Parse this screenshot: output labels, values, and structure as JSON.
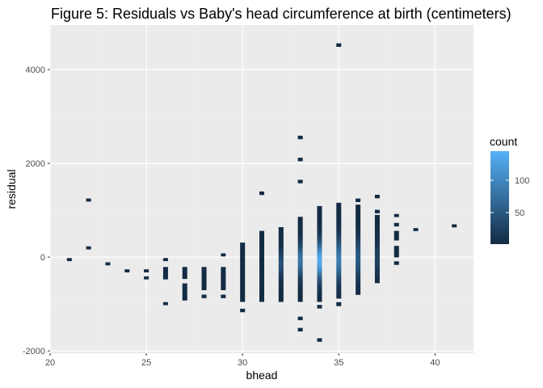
{
  "chart_data": {
    "type": "heatmap",
    "title": "Figure 5: Residuals vs Baby's head circumference at birth (centimeters)",
    "xlabel": "bhead",
    "ylabel": "residual",
    "xlim": [
      20,
      42
    ],
    "ylim": [
      -2050,
      4950
    ],
    "x_ticks": [
      20,
      25,
      30,
      35,
      40
    ],
    "x_tick_labels": [
      "20",
      "25",
      "30",
      "35",
      "40"
    ],
    "y_ticks": [
      -2000,
      0,
      2000,
      4000
    ],
    "y_tick_labels": [
      "-2000",
      "0",
      "2000",
      "4000"
    ],
    "grid": true,
    "legend": {
      "title": "count",
      "placement": "right",
      "ticks": [
        50,
        100
      ],
      "tick_labels": [
        "50",
        "100"
      ],
      "range": [
        1,
        145
      ],
      "color_low": "#132B43",
      "color_high": "#56B1F7"
    },
    "columns": [
      {
        "x": 21,
        "segments": [
          {
            "from": -80,
            "to": -20
          }
        ]
      },
      {
        "x": 22,
        "segments": [
          {
            "from": 170,
            "to": 230
          },
          {
            "from": 1190,
            "to": 1250
          }
        ]
      },
      {
        "x": 23,
        "segments": [
          {
            "from": -170,
            "to": -110
          }
        ]
      },
      {
        "x": 24,
        "segments": [
          {
            "from": -320,
            "to": -260
          }
        ]
      },
      {
        "x": 25,
        "segments": [
          {
            "from": -470,
            "to": -410
          },
          {
            "from": -320,
            "to": -260
          }
        ]
      },
      {
        "x": 26,
        "segments": [
          {
            "from": -1020,
            "to": -960
          },
          {
            "from": -470,
            "to": -210
          },
          {
            "from": -80,
            "to": -20
          }
        ]
      },
      {
        "x": 27,
        "segments": [
          {
            "from": -920,
            "to": -560
          },
          {
            "from": -460,
            "to": -210
          }
        ]
      },
      {
        "x": 28,
        "segments": [
          {
            "from": -870,
            "to": -800
          },
          {
            "from": -700,
            "to": -210
          }
        ]
      },
      {
        "x": 29,
        "segments": [
          {
            "from": -870,
            "to": -800
          },
          {
            "from": -700,
            "to": -210
          },
          {
            "from": 20,
            "to": 80
          }
        ]
      },
      {
        "x": 30,
        "segments": [
          {
            "from": -1170,
            "to": -1100
          },
          {
            "from": -950,
            "to": 310
          }
        ]
      },
      {
        "x": 31,
        "segments": [
          {
            "from": -950,
            "to": 560
          },
          {
            "from": 1330,
            "to": 1400
          }
        ]
      },
      {
        "x": 32,
        "segments": [
          {
            "from": -950,
            "to": 640
          }
        ]
      },
      {
        "x": 33,
        "segments": [
          {
            "from": -1580,
            "to": -1510
          },
          {
            "from": -1340,
            "to": -1270
          },
          {
            "from": -950,
            "to": 860
          },
          {
            "from": 1580,
            "to": 1650
          },
          {
            "from": 2050,
            "to": 2120
          },
          {
            "from": 2520,
            "to": 2590
          }
        ]
      },
      {
        "x": 34,
        "segments": [
          {
            "from": -1800,
            "to": -1730
          },
          {
            "from": -1090,
            "to": -1020
          },
          {
            "from": -950,
            "to": 1090
          }
        ]
      },
      {
        "x": 35,
        "segments": [
          {
            "from": -1040,
            "to": -960
          },
          {
            "from": -880,
            "to": 1160
          },
          {
            "from": 4490,
            "to": 4560
          }
        ]
      },
      {
        "x": 36,
        "segments": [
          {
            "from": -800,
            "to": 1120
          },
          {
            "from": 1180,
            "to": 1250
          }
        ]
      },
      {
        "x": 37,
        "segments": [
          {
            "from": -550,
            "to": 900
          },
          {
            "from": 940,
            "to": 1010
          },
          {
            "from": 1260,
            "to": 1330
          }
        ]
      },
      {
        "x": 38,
        "segments": [
          {
            "from": -160,
            "to": -90
          },
          {
            "from": 0,
            "to": 240
          },
          {
            "from": 360,
            "to": 560
          },
          {
            "from": 660,
            "to": 730
          },
          {
            "from": 860,
            "to": 920
          }
        ]
      },
      {
        "x": 39,
        "segments": [
          {
            "from": 560,
            "to": 620
          }
        ]
      },
      {
        "x": 41,
        "segments": [
          {
            "from": 640,
            "to": 700
          }
        ]
      }
    ],
    "hotspots": [
      {
        "x": 32,
        "center": -130,
        "spread": 190,
        "peak": 0.28
      },
      {
        "x": 33,
        "center": -70,
        "spread": 230,
        "peak": 0.55
      },
      {
        "x": 34,
        "center": -70,
        "spread": 270,
        "peak": 0.95
      },
      {
        "x": 35,
        "center": -50,
        "spread": 300,
        "peak": 0.6
      },
      {
        "x": 36,
        "center": -20,
        "spread": 300,
        "peak": 0.35
      },
      {
        "x": 37,
        "center": 0,
        "spread": 250,
        "peak": 0.15
      }
    ]
  }
}
